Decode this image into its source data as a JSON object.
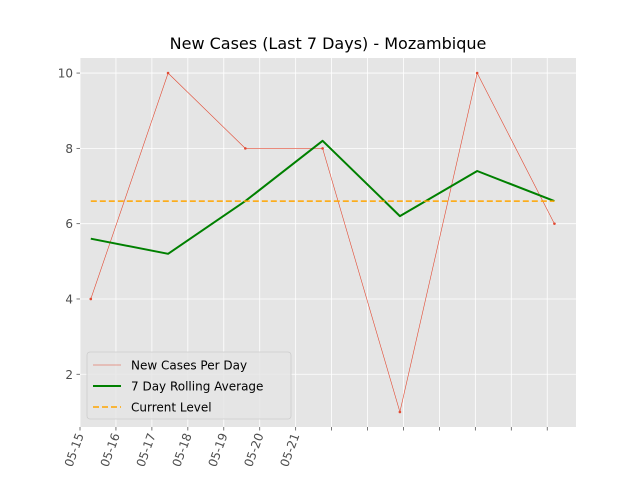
{
  "chart_data": {
    "type": "line",
    "title": "New Cases (Last 7 Days) - Mozambique",
    "xlabel": "",
    "ylabel": "",
    "x_tick_labels": [
      "05-15",
      "05-16",
      "05-17",
      "05-18",
      "05-19",
      "05-20",
      "05-21"
    ],
    "y_ticks": [
      2,
      4,
      6,
      8,
      10
    ],
    "ylim": [
      0.6,
      10.4
    ],
    "grid": true,
    "legend_position": "lower-left",
    "series": [
      {
        "name": "New Cases Per Day",
        "style": "thin-line",
        "color": "#e24a33",
        "x": [
          0.3,
          2.45,
          4.6,
          6.75,
          8.9,
          11.05,
          13.2
        ],
        "values": [
          4,
          10,
          8,
          8,
          1,
          10,
          6
        ]
      },
      {
        "name": "7 Day Rolling Average",
        "style": "thick-line",
        "color": "#008000",
        "x": [
          0.3,
          2.45,
          4.6,
          6.75,
          8.9,
          11.05,
          13.2
        ],
        "values": [
          5.6,
          5.2,
          6.6,
          8.2,
          6.2,
          7.4,
          6.6
        ]
      },
      {
        "name": "Current Level",
        "style": "dashed",
        "color": "#ffa500",
        "x": [
          0.3,
          13.2
        ],
        "values": [
          6.6,
          6.6
        ]
      }
    ],
    "colors": {
      "plot_background": "#e5e5e5",
      "grid": "#ffffff"
    }
  }
}
